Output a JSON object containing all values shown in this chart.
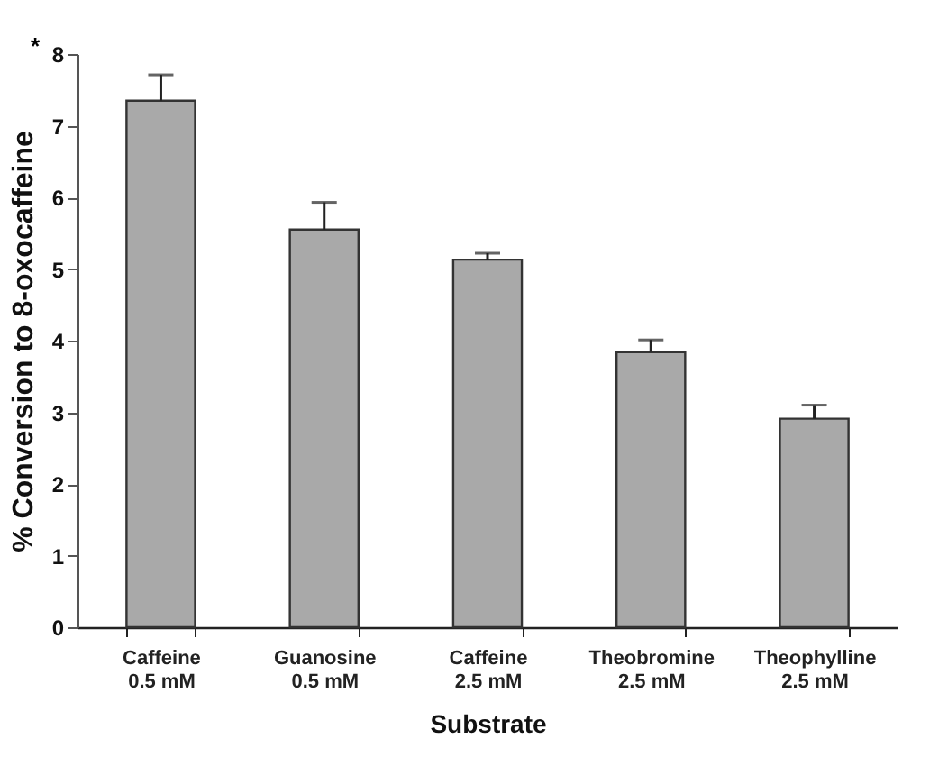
{
  "chart_data": {
    "type": "bar",
    "xlabel": "Substrate",
    "ylabel": "% Conversion to 8-oxocaffeine",
    "categories": [
      "Caffeine\n0.5 mM",
      "Guanosine\n0.5 mM",
      "Caffeine\n2.5 mM",
      "Theobromine\n2.5 mM",
      "Theophylline\n2.5 mM"
    ],
    "values": [
      7.35,
      5.55,
      5.13,
      3.84,
      2.91
    ],
    "errors": [
      [
        7.35,
        7.71
      ],
      [
        5.55,
        5.93
      ],
      [
        5.13,
        5.22
      ],
      [
        3.84,
        4.01
      ],
      [
        2.91,
        3.1
      ]
    ],
    "color": "#a9a9a9",
    "ylim": [
      0,
      8
    ],
    "yticks": [
      0,
      1,
      2,
      3,
      4,
      5,
      6,
      7,
      8
    ],
    "grid": false,
    "annotations": [
      "*"
    ]
  }
}
